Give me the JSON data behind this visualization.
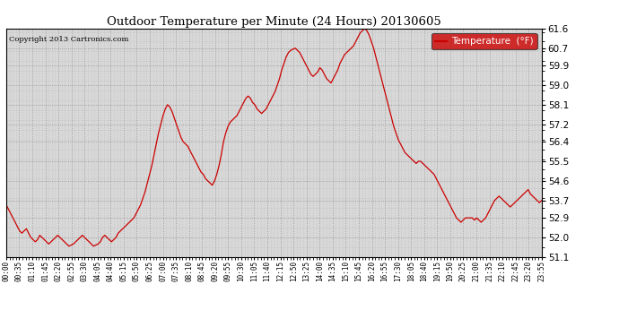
{
  "title": "Outdoor Temperature per Minute (24 Hours) 20130605",
  "copyright_text": "Copyright 2013 Cartronics.com",
  "legend_label": "Temperature  (°F)",
  "line_color": "#cc0000",
  "background_color": "#ffffff",
  "plot_bg_color": "#e8e8e8",
  "grid_color": "#bbbbbb",
  "yticks": [
    51.1,
    52.0,
    52.9,
    53.7,
    54.6,
    55.5,
    56.4,
    57.2,
    58.1,
    59.0,
    59.9,
    60.7,
    61.6
  ],
  "ymin": 51.1,
  "ymax": 61.6,
  "xtick_labels": [
    "00:00",
    "00:35",
    "01:10",
    "01:45",
    "02:20",
    "02:55",
    "03:30",
    "04:05",
    "04:40",
    "05:15",
    "05:50",
    "06:25",
    "07:00",
    "07:35",
    "08:10",
    "08:45",
    "09:20",
    "09:55",
    "10:30",
    "11:05",
    "11:40",
    "12:15",
    "12:50",
    "13:25",
    "14:00",
    "14:35",
    "15:10",
    "15:45",
    "16:20",
    "16:55",
    "17:30",
    "18:05",
    "18:40",
    "19:15",
    "19:50",
    "20:25",
    "21:00",
    "21:35",
    "22:10",
    "22:45",
    "23:20",
    "23:55"
  ],
  "temperature_data": [
    53.5,
    53.3,
    53.1,
    52.9,
    52.7,
    52.5,
    52.3,
    52.2,
    52.3,
    52.4,
    52.2,
    52.0,
    51.9,
    51.8,
    51.9,
    52.1,
    52.0,
    51.9,
    51.8,
    51.7,
    51.8,
    51.9,
    52.0,
    52.1,
    52.0,
    51.9,
    51.8,
    51.7,
    51.6,
    51.65,
    51.7,
    51.8,
    51.9,
    52.0,
    52.1,
    52.0,
    51.9,
    51.8,
    51.7,
    51.6,
    51.65,
    51.7,
    51.8,
    52.0,
    52.1,
    52.0,
    51.9,
    51.8,
    51.9,
    52.0,
    52.2,
    52.3,
    52.4,
    52.5,
    52.6,
    52.7,
    52.8,
    52.9,
    53.1,
    53.3,
    53.5,
    53.8,
    54.1,
    54.5,
    54.9,
    55.3,
    55.8,
    56.3,
    56.8,
    57.2,
    57.6,
    57.9,
    58.1,
    58.0,
    57.8,
    57.5,
    57.2,
    56.9,
    56.6,
    56.4,
    56.3,
    56.2,
    56.0,
    55.8,
    55.6,
    55.4,
    55.2,
    55.0,
    54.9,
    54.7,
    54.6,
    54.5,
    54.4,
    54.6,
    54.9,
    55.3,
    55.8,
    56.4,
    56.8,
    57.1,
    57.3,
    57.4,
    57.5,
    57.6,
    57.8,
    58.0,
    58.2,
    58.4,
    58.5,
    58.4,
    58.2,
    58.1,
    57.9,
    57.8,
    57.7,
    57.8,
    57.9,
    58.1,
    58.3,
    58.5,
    58.7,
    59.0,
    59.3,
    59.7,
    60.0,
    60.3,
    60.5,
    60.6,
    60.65,
    60.7,
    60.6,
    60.5,
    60.3,
    60.1,
    59.9,
    59.7,
    59.5,
    59.4,
    59.5,
    59.6,
    59.8,
    59.7,
    59.5,
    59.3,
    59.2,
    59.1,
    59.3,
    59.5,
    59.7,
    60.0,
    60.2,
    60.4,
    60.5,
    60.6,
    60.7,
    60.8,
    61.0,
    61.2,
    61.4,
    61.5,
    61.6,
    61.5,
    61.3,
    61.0,
    60.7,
    60.3,
    59.9,
    59.5,
    59.1,
    58.7,
    58.3,
    57.9,
    57.5,
    57.1,
    56.8,
    56.5,
    56.3,
    56.1,
    55.9,
    55.8,
    55.7,
    55.6,
    55.5,
    55.4,
    55.5,
    55.5,
    55.4,
    55.3,
    55.2,
    55.1,
    55.0,
    54.9,
    54.7,
    54.5,
    54.3,
    54.1,
    53.9,
    53.7,
    53.5,
    53.3,
    53.1,
    52.9,
    52.8,
    52.7,
    52.8,
    52.9,
    52.9,
    52.9,
    52.9,
    52.8,
    52.9,
    52.8,
    52.7,
    52.8,
    52.9,
    53.1,
    53.3,
    53.5,
    53.7,
    53.8,
    53.9,
    53.8,
    53.7,
    53.6,
    53.5,
    53.4,
    53.5,
    53.6,
    53.7,
    53.8,
    53.9,
    54.0,
    54.1,
    54.2,
    54.0,
    53.9,
    53.8,
    53.7,
    53.6,
    53.7
  ]
}
